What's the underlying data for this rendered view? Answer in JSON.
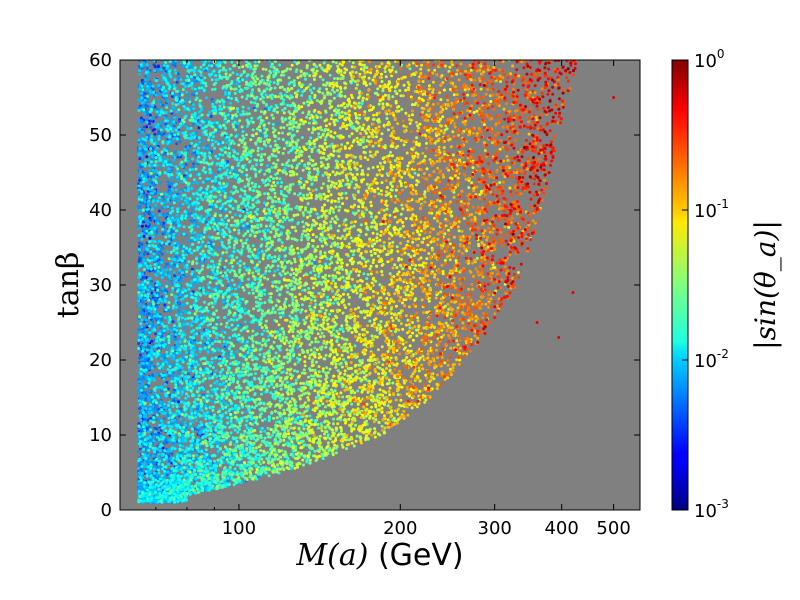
{
  "chart_data": {
    "type": "scatter",
    "title": "",
    "xlabel": {
      "math": "M(a)",
      "unit": " (GeV)"
    },
    "ylabel": "tanβ",
    "xscale": "log",
    "xlim": [
      60,
      560
    ],
    "ylim": [
      0,
      60
    ],
    "xticks": [
      {
        "value": 100,
        "label": "100"
      },
      {
        "value": 200,
        "label": "200"
      },
      {
        "value": 300,
        "label": "300"
      },
      {
        "value": 400,
        "label": "400"
      },
      {
        "value": 500,
        "label": "500"
      }
    ],
    "yticks": [
      {
        "value": 0,
        "label": "0"
      },
      {
        "value": 10,
        "label": "10"
      },
      {
        "value": 20,
        "label": "20"
      },
      {
        "value": 30,
        "label": "30"
      },
      {
        "value": 40,
        "label": "40"
      },
      {
        "value": 50,
        "label": "50"
      },
      {
        "value": 60,
        "label": "60"
      }
    ],
    "background_color": "#808080",
    "colorbar": {
      "label": "|sin(θ_a)|",
      "scale": "log",
      "range": [
        0.001,
        1
      ],
      "colormap": "jet",
      "ticks": [
        {
          "value": 1,
          "base": "10",
          "exp": "0"
        },
        {
          "value": 0.1,
          "base": "10",
          "exp": "-1"
        },
        {
          "value": 0.01,
          "base": "10",
          "exp": "-2"
        },
        {
          "value": 0.001,
          "base": "10",
          "exp": "-3"
        }
      ]
    },
    "point_cloud": {
      "description_of_distribution": "dense scatter of parameter-scan points; minimum M(a) about 65 GeV; right boundary M(a) rises from about 80 GeV at tanβ=2 to about 430 GeV at tanβ=60; color |sin(θ_a)| increases with M(a)",
      "n_points": 14000,
      "mass_min": 65,
      "boundary": [
        [
          2,
          80
        ],
        [
          5,
          120
        ],
        [
          10,
          185
        ],
        [
          15,
          230
        ],
        [
          20,
          262
        ],
        [
          25,
          300
        ],
        [
          30,
          330
        ],
        [
          35,
          350
        ],
        [
          40,
          365
        ],
        [
          45,
          380
        ],
        [
          50,
          395
        ],
        [
          55,
          410
        ],
        [
          60,
          430
        ]
      ],
      "outliers": [
        [
          395,
          23
        ],
        [
          420,
          29
        ],
        [
          360,
          25
        ],
        [
          500,
          55
        ]
      ],
      "color_model": {
        "log10_at_mass_min": -2.2,
        "log10_at_boundary": -0.3,
        "noise": 0.35
      }
    }
  }
}
